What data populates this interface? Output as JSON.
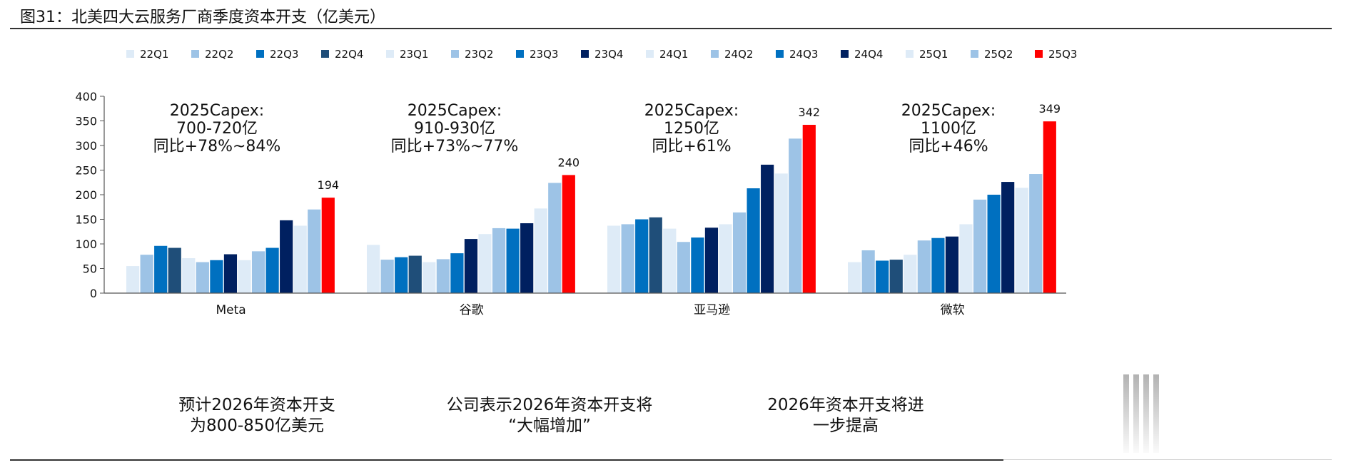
{
  "figure": {
    "title": "图31：北美四大云服务厂商季度资本开支（亿美元）"
  },
  "chart_data": {
    "type": "bar",
    "title": "北美四大云服务厂商季度资本开支（亿美元）",
    "xlabel": "",
    "ylabel": "",
    "ylim": [
      0,
      400
    ],
    "yticks": [
      "0",
      "50",
      "100",
      "150",
      "200",
      "250",
      "300",
      "350",
      "400"
    ],
    "legend_position": "top",
    "categories": [
      "Meta",
      "谷歌",
      "亚马逊",
      "微软"
    ],
    "series": [
      {
        "name": "22Q1",
        "color": "#deebf7",
        "values": [
          55,
          98,
          137,
          63
        ]
      },
      {
        "name": "22Q2",
        "color": "#9dc3e6",
        "values": [
          78,
          68,
          140,
          87
        ]
      },
      {
        "name": "22Q3",
        "color": "#0070c0",
        "values": [
          96,
          73,
          150,
          66
        ]
      },
      {
        "name": "22Q4",
        "color": "#1f4e79",
        "values": [
          92,
          76,
          154,
          68
        ]
      },
      {
        "name": "23Q1",
        "color": "#deebf7",
        "values": [
          71,
          63,
          131,
          78
        ]
      },
      {
        "name": "23Q2",
        "color": "#9dc3e6",
        "values": [
          63,
          69,
          104,
          107
        ]
      },
      {
        "name": "23Q3",
        "color": "#0070c0",
        "values": [
          67,
          81,
          113,
          112
        ]
      },
      {
        "name": "23Q4",
        "color": "#002060",
        "values": [
          79,
          110,
          133,
          115
        ]
      },
      {
        "name": "24Q1",
        "color": "#deebf7",
        "values": [
          67,
          120,
          140,
          140
        ]
      },
      {
        "name": "24Q2",
        "color": "#9dc3e6",
        "values": [
          85,
          132,
          164,
          190
        ]
      },
      {
        "name": "24Q3",
        "color": "#0070c0",
        "values": [
          92,
          131,
          213,
          200
        ]
      },
      {
        "name": "24Q4",
        "color": "#002060",
        "values": [
          148,
          142,
          261,
          226
        ]
      },
      {
        "name": "25Q1",
        "color": "#deebf7",
        "values": [
          137,
          172,
          243,
          214
        ]
      },
      {
        "name": "25Q2",
        "color": "#9dc3e6",
        "values": [
          170,
          224,
          314,
          242
        ]
      },
      {
        "name": "25Q3",
        "color": "#ff0000",
        "values": [
          194,
          240,
          342,
          349
        ]
      }
    ],
    "data_labels": [
      {
        "category": "Meta",
        "series": "25Q3",
        "text": "194"
      },
      {
        "category": "谷歌",
        "series": "25Q3",
        "text": "240"
      },
      {
        "category": "亚马逊",
        "series": "25Q3",
        "text": "342"
      },
      {
        "category": "微软",
        "series": "25Q3",
        "text": "349"
      }
    ],
    "annotations": [
      {
        "category": "Meta",
        "lines": [
          "2025Capex:",
          "700-720亿",
          "同比+78%~84%"
        ]
      },
      {
        "category": "谷歌",
        "lines": [
          "2025Capex:",
          "910-930亿",
          "同比+73%~77%"
        ]
      },
      {
        "category": "亚马逊",
        "lines": [
          "2025Capex:",
          "1250亿",
          "同比+61%"
        ]
      },
      {
        "category": "微软",
        "lines": [
          "2025Capex:",
          "1100亿",
          "同比+46%"
        ]
      }
    ]
  },
  "notes": [
    {
      "category": "Meta",
      "lines": [
        "预计2026年资本开支",
        "为800-850亿美元"
      ]
    },
    {
      "category": "谷歌",
      "lines": [
        "公司表示2026年资本开支将",
        "“大幅增加”"
      ]
    },
    {
      "category": "亚马逊",
      "lines": [
        "2026年资本开支将进",
        "一步提高"
      ]
    }
  ]
}
